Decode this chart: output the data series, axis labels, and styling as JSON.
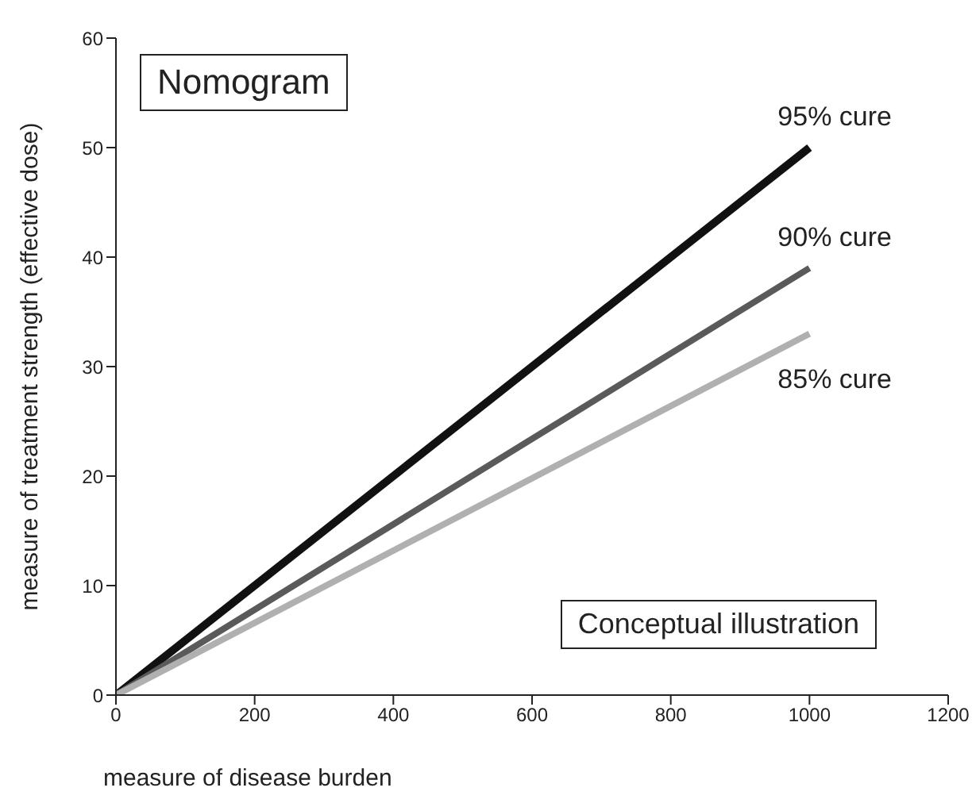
{
  "chart_data": {
    "type": "line",
    "xlabel": "measure of disease burden",
    "ylabel": "measure of treatment strength (effective dose)",
    "annotations": [
      "Nomogram",
      "Conceptual illustration"
    ],
    "x": [
      0,
      1000
    ],
    "series": [
      {
        "name": "95% cure",
        "color": "#111111",
        "values": [
          0,
          50
        ]
      },
      {
        "name": "90% cure",
        "color": "#5a5a5a",
        "values": [
          0,
          39
        ]
      },
      {
        "name": "85% cure",
        "color": "#b0b0b0",
        "values": [
          0,
          33
        ]
      }
    ],
    "xlim": [
      0,
      1200
    ],
    "xticks": [
      0,
      200,
      400,
      600,
      800,
      1000,
      1200
    ],
    "ylim": [
      0,
      60
    ],
    "yticks": [
      0,
      10,
      20,
      30,
      40,
      50,
      60
    ],
    "grid": false,
    "legend": false,
    "marker": "none",
    "line_style": "solid"
  }
}
